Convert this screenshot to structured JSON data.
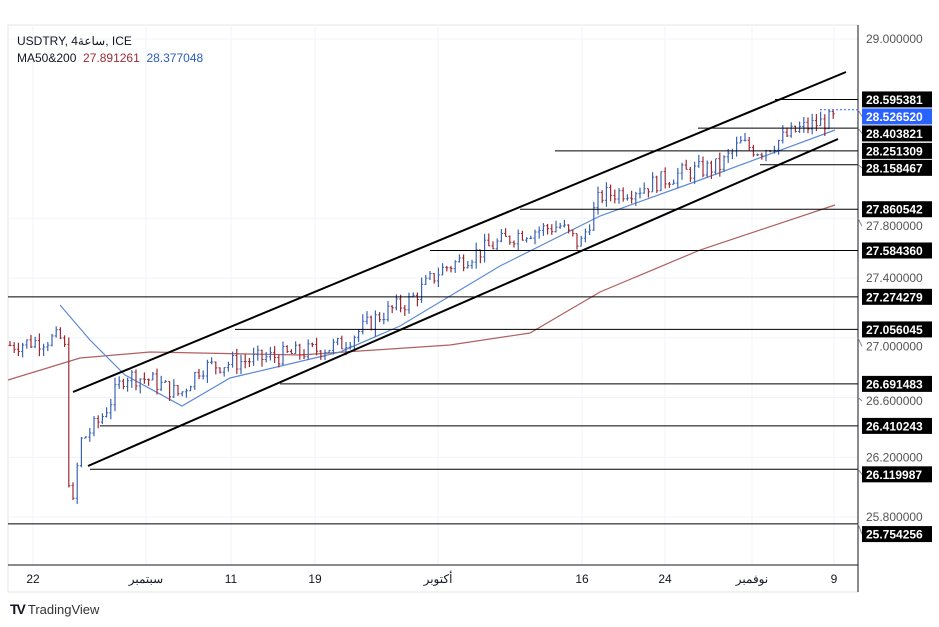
{
  "header": {
    "symbol": "USDTRY, 4ساعة, ICE",
    "ma_label": "MA50&200",
    "ma50_value": "27.891261",
    "ma200_value": "28.377048"
  },
  "brand": {
    "label": "TradingView"
  },
  "colors": {
    "ma50": "#5b8ad6",
    "ma200": "#b06060",
    "up": "#3c64b4",
    "down": "#9c2a35",
    "current": "#2962ff"
  },
  "chart_data": {
    "type": "bar",
    "title": "USDTRY, 4h, ICE",
    "ylim": [
      25.6,
      29.1
    ],
    "y_ticks": [
      "29.000000",
      "27.800000",
      "27.400000",
      "27.000000",
      "26.600000",
      "26.200000",
      "25.800000"
    ],
    "y_tick_values": [
      29.0,
      27.8,
      27.4,
      27.0,
      26.6,
      26.2,
      25.8
    ],
    "x_ticks": [
      "22",
      "سبتمبر",
      "11",
      "19",
      "أكتوبر",
      "16",
      "24",
      "نوفمبر",
      "9"
    ],
    "current_price": {
      "label": "28.526520",
      "value": 28.52652
    },
    "levels": [
      {
        "label": "28.595381",
        "value": 28.595381
      },
      {
        "label": "28.403821",
        "value": 28.403821
      },
      {
        "label": "28.251309",
        "value": 28.251309
      },
      {
        "label": "28.158467",
        "value": 28.158467
      },
      {
        "label": "27.860542",
        "value": 27.860542
      },
      {
        "label": "27.584360",
        "value": 27.58436
      },
      {
        "label": "27.274279",
        "value": 27.274279
      },
      {
        "label": "27.056045",
        "value": 27.056045
      },
      {
        "label": "26.691483",
        "value": 26.691483
      },
      {
        "label": "26.410243",
        "value": 26.410243
      },
      {
        "label": "26.119987",
        "value": 26.119987
      },
      {
        "label": "25.754256",
        "value": 25.754256
      }
    ],
    "ma50_last": 27.891261,
    "ma200_last": 28.377048
  }
}
